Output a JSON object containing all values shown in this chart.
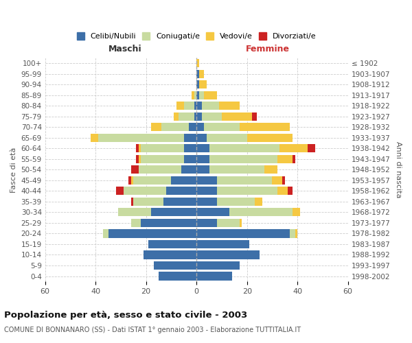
{
  "age_groups": [
    "0-4",
    "5-9",
    "10-14",
    "15-19",
    "20-24",
    "25-29",
    "30-34",
    "35-39",
    "40-44",
    "45-49",
    "50-54",
    "55-59",
    "60-64",
    "65-69",
    "70-74",
    "75-79",
    "80-84",
    "85-89",
    "90-94",
    "95-99",
    "100+"
  ],
  "birth_years": [
    "1998-2002",
    "1993-1997",
    "1988-1992",
    "1983-1987",
    "1978-1982",
    "1973-1977",
    "1968-1972",
    "1963-1967",
    "1958-1962",
    "1953-1957",
    "1948-1952",
    "1943-1947",
    "1938-1942",
    "1933-1937",
    "1928-1932",
    "1923-1927",
    "1918-1922",
    "1913-1917",
    "1908-1912",
    "1903-1907",
    "≤ 1902"
  ],
  "maschi": {
    "celibe": [
      15,
      17,
      21,
      19,
      35,
      22,
      18,
      13,
      12,
      10,
      6,
      5,
      5,
      5,
      3,
      1,
      1,
      0,
      0,
      0,
      0
    ],
    "coniugato": [
      0,
      0,
      0,
      0,
      2,
      4,
      13,
      12,
      17,
      15,
      17,
      17,
      17,
      34,
      11,
      6,
      4,
      1,
      0,
      0,
      0
    ],
    "vedovo": [
      0,
      0,
      0,
      0,
      0,
      0,
      0,
      0,
      0,
      1,
      0,
      1,
      1,
      3,
      4,
      2,
      3,
      1,
      0,
      0,
      0
    ],
    "divorziato": [
      0,
      0,
      0,
      0,
      0,
      0,
      0,
      1,
      3,
      1,
      3,
      1,
      1,
      0,
      0,
      0,
      0,
      0,
      0,
      0,
      0
    ]
  },
  "femmine": {
    "nubile": [
      14,
      17,
      25,
      21,
      37,
      8,
      13,
      8,
      8,
      8,
      5,
      5,
      5,
      4,
      3,
      2,
      2,
      1,
      1,
      1,
      0
    ],
    "coniugata": [
      0,
      0,
      0,
      0,
      2,
      9,
      25,
      15,
      24,
      22,
      22,
      27,
      28,
      16,
      14,
      8,
      7,
      2,
      0,
      0,
      0
    ],
    "vedova": [
      0,
      0,
      0,
      0,
      1,
      1,
      3,
      3,
      4,
      4,
      5,
      6,
      11,
      18,
      20,
      12,
      8,
      5,
      3,
      2,
      1
    ],
    "divorziata": [
      0,
      0,
      0,
      0,
      0,
      0,
      0,
      0,
      2,
      1,
      0,
      1,
      3,
      0,
      0,
      2,
      0,
      0,
      0,
      0,
      0
    ]
  },
  "colors": {
    "celibe_nubile": "#3d6fa8",
    "coniugato_a": "#c8dba0",
    "vedovo_a": "#f5c842",
    "divorziato_a": "#cc2222"
  },
  "xlim": 60,
  "title": "Popolazione per età, sesso e stato civile - 2003",
  "subtitle": "COMUNE DI BONNANARO (SS) - Dati ISTAT 1° gennaio 2003 - Elaborazione TUTTITALIA.IT",
  "xlabel_left": "Maschi",
  "xlabel_right": "Femmine",
  "ylabel_left": "Fasce di età",
  "ylabel_right": "Anni di nascita"
}
